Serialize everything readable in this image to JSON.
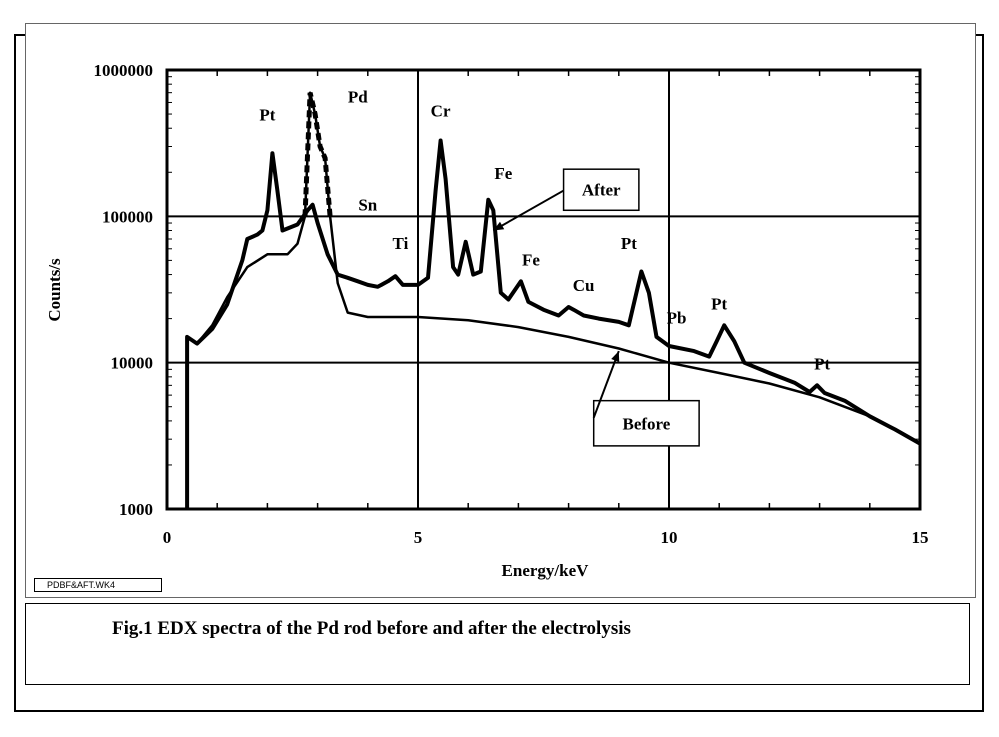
{
  "figure": {
    "caption": "Fig.1 EDX spectra of the Pd rod before and  after the electrolysis",
    "file_label": "PDBF&AFT.WK4"
  },
  "chart_data": {
    "type": "line",
    "title": "",
    "xlabel": "Energy/keV",
    "ylabel": "Counts/s",
    "xlim": [
      0,
      15
    ],
    "ylim": [
      1000,
      1000000
    ],
    "y_scale": "log",
    "grid": true,
    "x_ticks": [
      "0",
      "5",
      "10",
      "15"
    ],
    "y_ticks": [
      "1000",
      "10000",
      "100000",
      "1000000"
    ],
    "x_tick_values": [
      0,
      5,
      10,
      15
    ],
    "y_tick_values": [
      1000,
      10000,
      100000,
      1000000
    ],
    "series": [
      {
        "name": "After",
        "style": "bold-solid",
        "points": [
          [
            0.4,
            1000
          ],
          [
            0.4,
            15000
          ],
          [
            0.6,
            13500
          ],
          [
            0.9,
            17000
          ],
          [
            1.2,
            25000
          ],
          [
            1.5,
            50000
          ],
          [
            1.6,
            70000
          ],
          [
            1.8,
            75000
          ],
          [
            1.9,
            80000
          ],
          [
            2.0,
            110000
          ],
          [
            2.1,
            270000
          ],
          [
            2.2,
            150000
          ],
          [
            2.3,
            80000
          ],
          [
            2.6,
            88000
          ],
          [
            2.8,
            110000
          ],
          [
            2.9,
            120000
          ],
          [
            3.0,
            90000
          ],
          [
            3.2,
            55000
          ],
          [
            3.4,
            40000
          ],
          [
            3.6,
            38000
          ],
          [
            3.8,
            36000
          ],
          [
            4.0,
            34000
          ],
          [
            4.2,
            33000
          ],
          [
            4.4,
            36000
          ],
          [
            4.55,
            39000
          ],
          [
            4.7,
            34000
          ],
          [
            5.0,
            34000
          ],
          [
            5.2,
            38000
          ],
          [
            5.35,
            150000
          ],
          [
            5.45,
            330000
          ],
          [
            5.55,
            180000
          ],
          [
            5.7,
            45000
          ],
          [
            5.8,
            40000
          ],
          [
            5.95,
            67000
          ],
          [
            6.1,
            40000
          ],
          [
            6.25,
            42000
          ],
          [
            6.4,
            130000
          ],
          [
            6.5,
            110000
          ],
          [
            6.65,
            30000
          ],
          [
            6.8,
            27000
          ],
          [
            7.05,
            36000
          ],
          [
            7.2,
            26000
          ],
          [
            7.5,
            23000
          ],
          [
            7.8,
            21000
          ],
          [
            8.0,
            24000
          ],
          [
            8.1,
            23000
          ],
          [
            8.3,
            21000
          ],
          [
            8.6,
            20000
          ],
          [
            9.0,
            19000
          ],
          [
            9.2,
            18000
          ],
          [
            9.35,
            30000
          ],
          [
            9.45,
            42000
          ],
          [
            9.6,
            30000
          ],
          [
            9.75,
            15000
          ],
          [
            10.0,
            13000
          ],
          [
            10.5,
            12000
          ],
          [
            10.8,
            11000
          ],
          [
            10.95,
            14000
          ],
          [
            11.1,
            18000
          ],
          [
            11.3,
            14000
          ],
          [
            11.5,
            10000
          ],
          [
            12.0,
            8500
          ],
          [
            12.5,
            7300
          ],
          [
            12.8,
            6300
          ],
          [
            12.95,
            7000
          ],
          [
            13.1,
            6200
          ],
          [
            13.5,
            5500
          ],
          [
            14.0,
            4300
          ],
          [
            14.5,
            3500
          ],
          [
            15.0,
            2800
          ]
        ]
      },
      {
        "name": "Before",
        "style": "solid",
        "points": [
          [
            0.4,
            1000
          ],
          [
            0.4,
            15000
          ],
          [
            0.6,
            13500
          ],
          [
            0.9,
            18000
          ],
          [
            1.2,
            28000
          ],
          [
            1.6,
            45000
          ],
          [
            2.0,
            55000
          ],
          [
            2.2,
            55000
          ],
          [
            2.4,
            55000
          ],
          [
            2.6,
            65000
          ],
          [
            2.75,
            100000
          ],
          [
            2.85,
            700000
          ],
          [
            2.95,
            500000
          ],
          [
            3.05,
            300000
          ],
          [
            3.15,
            250000
          ],
          [
            3.25,
            100000
          ],
          [
            3.4,
            35000
          ],
          [
            3.6,
            22000
          ],
          [
            4.0,
            20500
          ],
          [
            5.0,
            20500
          ],
          [
            6.0,
            19500
          ],
          [
            7.0,
            17500
          ],
          [
            8.0,
            15000
          ],
          [
            9.0,
            12500
          ],
          [
            10.0,
            10000
          ],
          [
            11.0,
            8500
          ],
          [
            12.0,
            7200
          ],
          [
            13.0,
            5800
          ],
          [
            14.0,
            4300
          ],
          [
            15.0,
            2800
          ]
        ]
      }
    ],
    "annotations": [
      {
        "text": "Pt",
        "x": 2.0,
        "y": 450000
      },
      {
        "text": "Pd",
        "x": 3.8,
        "y": 600000
      },
      {
        "text": "Cr",
        "x": 5.45,
        "y": 480000
      },
      {
        "text": "Sn",
        "x": 4.0,
        "y": 110000
      },
      {
        "text": "Fe",
        "x": 6.7,
        "y": 180000
      },
      {
        "text": "Ti",
        "x": 4.65,
        "y": 60000
      },
      {
        "text": "Fe",
        "x": 7.25,
        "y": 46000
      },
      {
        "text": "Cu",
        "x": 8.3,
        "y": 31000
      },
      {
        "text": "Pt",
        "x": 9.2,
        "y": 60000
      },
      {
        "text": "Pb",
        "x": 10.15,
        "y": 18500
      },
      {
        "text": "Pt",
        "x": 11.0,
        "y": 23000
      },
      {
        "text": "Pt",
        "x": 13.05,
        "y": 9000
      }
    ],
    "legend_callouts": [
      {
        "text": "After",
        "box_x": [
          7.9,
          9.4
        ],
        "box_y": [
          210000,
          110000
        ],
        "arrow_from": [
          7.9,
          150000
        ],
        "arrow_to": [
          6.5,
          80000
        ]
      },
      {
        "text": "Before",
        "box_x": [
          8.5,
          10.6
        ],
        "box_y": [
          5500,
          2700
        ],
        "arrow_from": [
          8.5,
          4200
        ],
        "arrow_to": [
          9.0,
          12000
        ]
      }
    ]
  }
}
